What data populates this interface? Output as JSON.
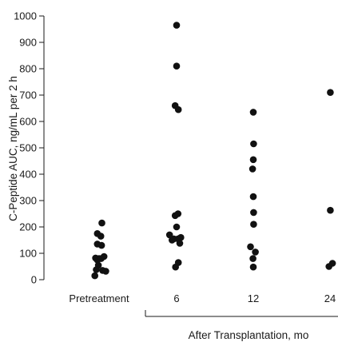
{
  "chart_data": {
    "type": "scatter",
    "ylabel": "C-Peptide AUC, ng/mL per 2 h",
    "xlabel": "After Transplantation, mo",
    "ylim": [
      0,
      1000
    ],
    "yticks": [
      "0",
      "100",
      "200",
      "300",
      "400",
      "500",
      "600",
      "700",
      "800",
      "900",
      "1000"
    ],
    "grid": false,
    "categories": [
      "Pretreatment",
      "6",
      "12",
      "24"
    ],
    "series": [
      {
        "category": "Pretreatment",
        "points": [
          {
            "x": 0.08,
            "y": 215
          },
          {
            "x": -0.05,
            "y": 175
          },
          {
            "x": 0.05,
            "y": 165
          },
          {
            "x": -0.05,
            "y": 135
          },
          {
            "x": 0.07,
            "y": 130
          },
          {
            "x": -0.1,
            "y": 82
          },
          {
            "x": 0.0,
            "y": 80
          },
          {
            "x": -0.05,
            "y": 75
          },
          {
            "x": 0.06,
            "y": 80
          },
          {
            "x": 0.14,
            "y": 88
          },
          {
            "x": -0.02,
            "y": 55
          },
          {
            "x": -0.08,
            "y": 38
          },
          {
            "x": 0.1,
            "y": 35
          },
          {
            "x": 0.19,
            "y": 32
          },
          {
            "x": -0.12,
            "y": 15
          }
        ]
      },
      {
        "category": "6",
        "points": [
          {
            "x": 0.0,
            "y": 965
          },
          {
            "x": 0.0,
            "y": 810
          },
          {
            "x": -0.04,
            "y": 660
          },
          {
            "x": 0.05,
            "y": 645
          },
          {
            "x": 0.04,
            "y": 250
          },
          {
            "x": -0.04,
            "y": 243
          },
          {
            "x": 0.0,
            "y": 200
          },
          {
            "x": -0.2,
            "y": 170
          },
          {
            "x": 0.12,
            "y": 160
          },
          {
            "x": -0.08,
            "y": 155
          },
          {
            "x": -0.13,
            "y": 150
          },
          {
            "x": 0.04,
            "y": 155
          },
          {
            "x": 0.09,
            "y": 138
          },
          {
            "x": 0.05,
            "y": 65
          },
          {
            "x": -0.03,
            "y": 48
          }
        ]
      },
      {
        "category": "12",
        "points": [
          {
            "x": 0.0,
            "y": 635
          },
          {
            "x": 0.01,
            "y": 515
          },
          {
            "x": 0.0,
            "y": 455
          },
          {
            "x": -0.02,
            "y": 420
          },
          {
            "x": 0.0,
            "y": 315
          },
          {
            "x": 0.01,
            "y": 255
          },
          {
            "x": 0.01,
            "y": 210
          },
          {
            "x": -0.08,
            "y": 125
          },
          {
            "x": 0.06,
            "y": 105
          },
          {
            "x": -0.01,
            "y": 80
          },
          {
            "x": 0.0,
            "y": 48
          }
        ]
      },
      {
        "category": "24",
        "points": [
          {
            "x": 0.01,
            "y": 710
          },
          {
            "x": 0.01,
            "y": 263
          },
          {
            "x": 0.07,
            "y": 62
          },
          {
            "x": -0.03,
            "y": 50
          }
        ]
      }
    ],
    "colors": {
      "dot": "#111111",
      "axis": "#1a1a1a"
    }
  }
}
